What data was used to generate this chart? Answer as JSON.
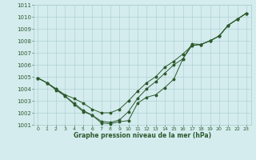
{
  "title": "Graphe pression niveau de la mer (hPa)",
  "bg_color": "#d4ecee",
  "grid_color": "#a8cccc",
  "line_color": "#2d5a2d",
  "xlim": [
    -0.5,
    23.5
  ],
  "ylim": [
    1001,
    1011
  ],
  "xticks": [
    0,
    1,
    2,
    3,
    4,
    5,
    6,
    7,
    8,
    9,
    10,
    11,
    12,
    13,
    14,
    15,
    16,
    17,
    18,
    19,
    20,
    21,
    22,
    23
  ],
  "yticks": [
    1001,
    1002,
    1003,
    1004,
    1005,
    1006,
    1007,
    1008,
    1009,
    1010,
    1011
  ],
  "series": [
    {
      "x": [
        0,
        1,
        2,
        3,
        4,
        5,
        6,
        7,
        8,
        9,
        10,
        11,
        12,
        13,
        14,
        15,
        16,
        17,
        18,
        19,
        20,
        21,
        22,
        23
      ],
      "y": [
        1004.9,
        1004.5,
        1004.0,
        1003.5,
        1003.2,
        1002.8,
        1002.3,
        1002.0,
        1002.0,
        1002.3,
        1003.0,
        1003.8,
        1004.5,
        1005.0,
        1005.8,
        1006.3,
        1006.9,
        1007.6,
        1007.7,
        1008.0,
        1008.4,
        1009.3,
        1009.8,
        1010.3
      ]
    },
    {
      "x": [
        0,
        1,
        2,
        3,
        4,
        5,
        6,
        7,
        8,
        9,
        10,
        11,
        12,
        13,
        14,
        15,
        16,
        17,
        18,
        19,
        20,
        21,
        22,
        23
      ],
      "y": [
        1004.9,
        1004.5,
        1004.0,
        1003.4,
        1002.8,
        1002.2,
        1001.8,
        1001.3,
        1001.2,
        1001.4,
        1002.1,
        1003.2,
        1004.0,
        1004.6,
        1005.3,
        1006.0,
        1006.5,
        1007.6,
        1007.7,
        1008.0,
        1008.4,
        1009.3,
        1009.8,
        1010.3
      ]
    },
    {
      "x": [
        0,
        1,
        2,
        3,
        4,
        5,
        6,
        7,
        8,
        9,
        10,
        11,
        12,
        13,
        14,
        15,
        16,
        17,
        18,
        19,
        20,
        21,
        22,
        23
      ],
      "y": [
        1004.9,
        1004.5,
        1003.9,
        1003.4,
        1002.7,
        1002.1,
        1001.8,
        1001.15,
        1001.1,
        1001.25,
        1001.35,
        1002.8,
        1003.3,
        1003.5,
        1004.1,
        1004.8,
        1006.5,
        1007.75,
        1007.7,
        1008.0,
        1008.4,
        1009.3,
        1009.8,
        1010.3
      ]
    }
  ]
}
